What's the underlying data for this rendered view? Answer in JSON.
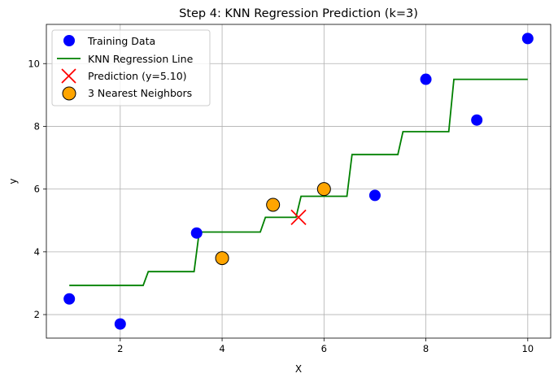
{
  "chart_data": {
    "type": "scatter",
    "title": "Step 4: KNN Regression Prediction (k=3)",
    "xlabel": "X",
    "ylabel": "y",
    "xlim": [
      0.55,
      10.45
    ],
    "ylim": [
      1.25,
      11.25
    ],
    "xticks": [
      2,
      4,
      6,
      8,
      10
    ],
    "yticks": [
      2,
      4,
      6,
      8,
      10
    ],
    "grid": true,
    "legend_position": "upper-left",
    "colors": {
      "training": "#0000ff",
      "line": "#008000",
      "prediction": "#ff0000",
      "neighbors": "#ffa500",
      "grid": "#b0b0b0"
    },
    "series": [
      {
        "name": "Training Data",
        "kind": "scatter",
        "x": [
          1,
          2,
          3.5,
          7,
          8,
          9,
          10
        ],
        "y": [
          2.5,
          1.7,
          4.6,
          5.8,
          9.5,
          8.2,
          10.8
        ]
      },
      {
        "name": "KNN Regression Line",
        "kind": "line",
        "x": [
          1.0,
          2.45,
          2.55,
          3.45,
          3.55,
          4.75,
          4.85,
          5.45,
          5.55,
          6.45,
          6.55,
          7.45,
          7.55,
          8.45,
          8.55,
          10.0
        ],
        "y": [
          2.93,
          2.93,
          3.37,
          3.37,
          4.63,
          4.63,
          5.1,
          5.1,
          5.77,
          5.77,
          7.1,
          7.1,
          7.83,
          7.83,
          9.5,
          9.5
        ]
      },
      {
        "name": "Prediction (y=5.10)",
        "kind": "marker-x",
        "x": [
          5.5
        ],
        "y": [
          5.1
        ]
      },
      {
        "name": "3 Nearest Neighbors",
        "kind": "scatter-outlined",
        "x": [
          4,
          5,
          6
        ],
        "y": [
          3.8,
          5.5,
          6.0
        ]
      }
    ]
  }
}
